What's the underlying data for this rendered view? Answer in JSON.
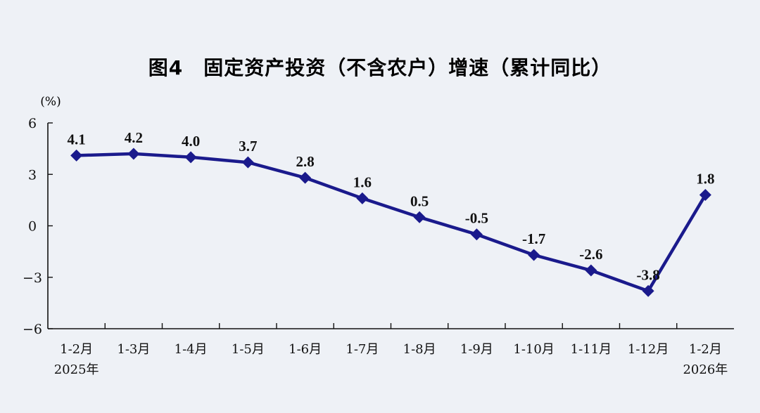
{
  "chart_data": {
    "type": "line",
    "title": "图4　固定资产投资（不含农户）增速（累计同比）",
    "unit": "(%)",
    "categories": [
      "1-2月",
      "1-3月",
      "1-4月",
      "1-5月",
      "1-6月",
      "1-7月",
      "1-8月",
      "1-9月",
      "1-10月",
      "1-11月",
      "1-12月",
      "1-2月"
    ],
    "year_labels": [
      {
        "category_index": 0,
        "label": "2025年"
      },
      {
        "category_index": 11,
        "label": "2026年"
      }
    ],
    "series": [
      {
        "values": [
          4.1,
          4.2,
          4.0,
          3.7,
          2.8,
          1.6,
          0.5,
          -0.5,
          -1.7,
          -2.6,
          -3.8,
          1.8
        ],
        "data_labels": [
          "4.1",
          "4.2",
          "4.0",
          "3.7",
          "2.8",
          "1.6",
          "0.5",
          "-0.5",
          "-1.7",
          "-2.6",
          "-3.8",
          "1.8"
        ],
        "color": "#1a1a8c",
        "marker": "diamond"
      }
    ],
    "yticks": [
      {
        "value": 6,
        "label": "6"
      },
      {
        "value": 3,
        "label": "3"
      },
      {
        "value": 0,
        "label": "0"
      },
      {
        "value": -3,
        "label": "−3"
      },
      {
        "value": -6,
        "label": "−6"
      }
    ],
    "ylim": [
      -6,
      6
    ],
    "grid": false,
    "legend": "none"
  },
  "colors": {
    "background": "#eef1f6",
    "line": "#1a1a8c",
    "axis": "#111111"
  }
}
